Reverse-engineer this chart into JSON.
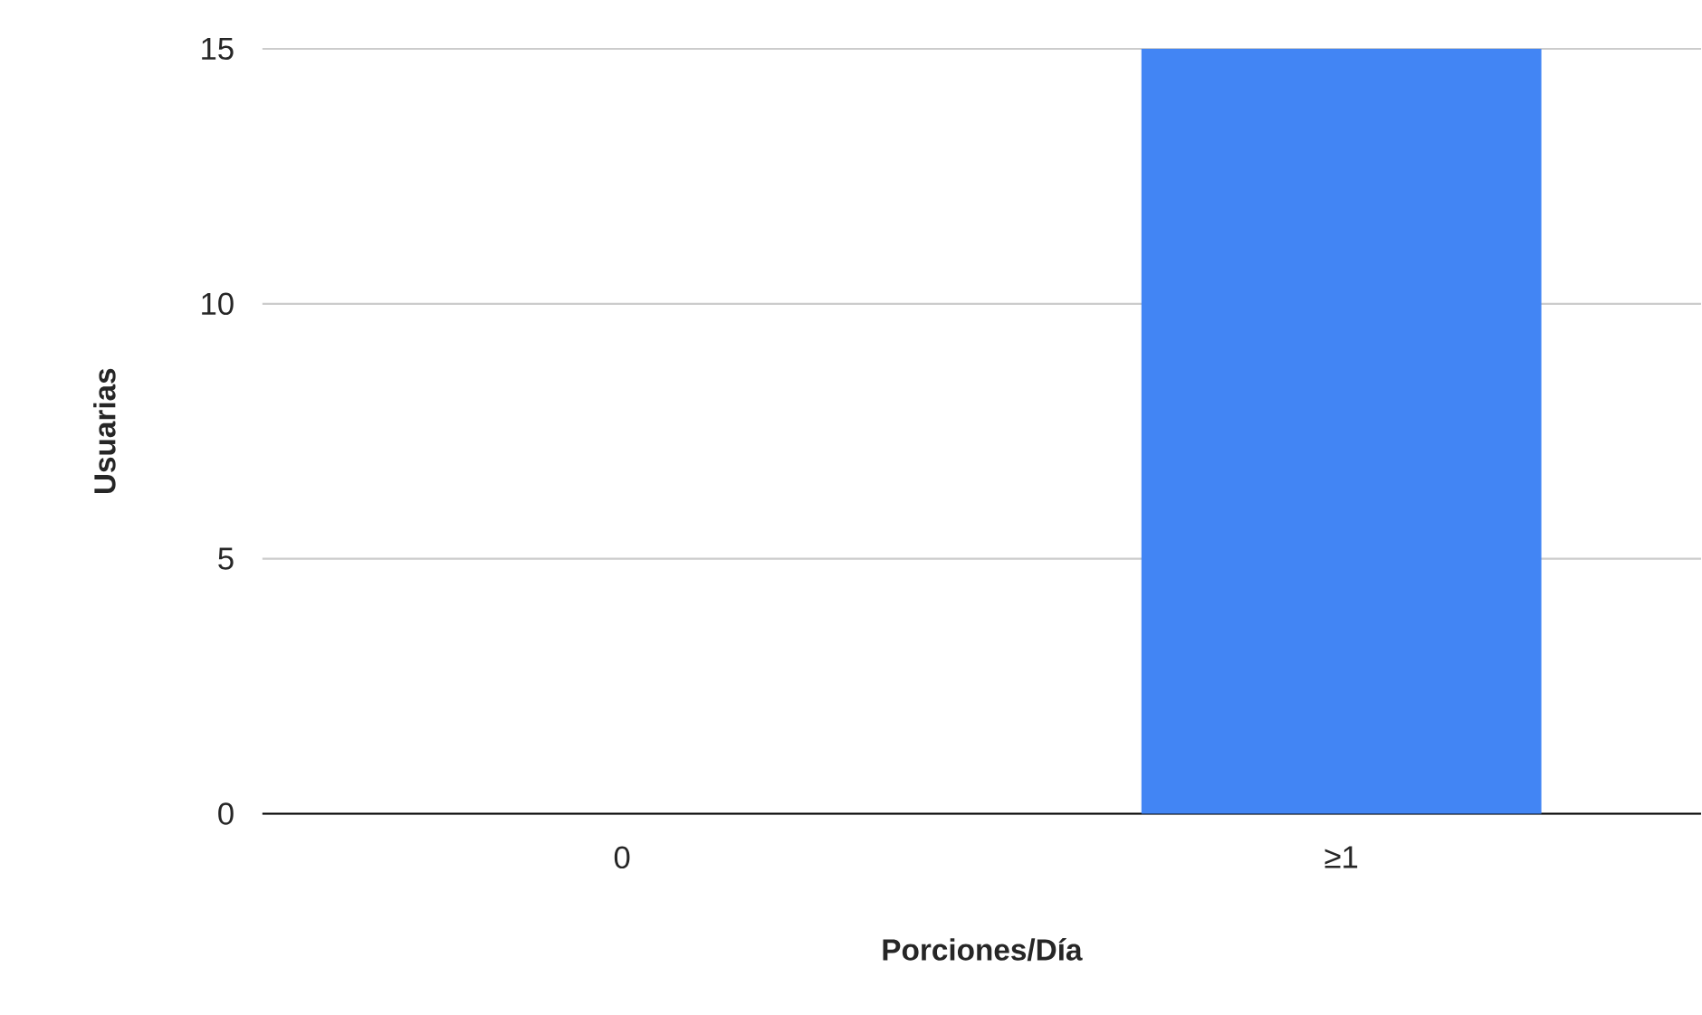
{
  "chart_data": {
    "type": "bar",
    "xlabel": "Porciones/Día",
    "ylabel": "Usuarias",
    "categories": [
      "0",
      "≥1"
    ],
    "values": [
      0,
      15
    ],
    "color": "#4285f4",
    "ylim": [
      0,
      15
    ],
    "yticks": [
      0,
      5,
      10,
      15
    ],
    "grid": "y"
  }
}
